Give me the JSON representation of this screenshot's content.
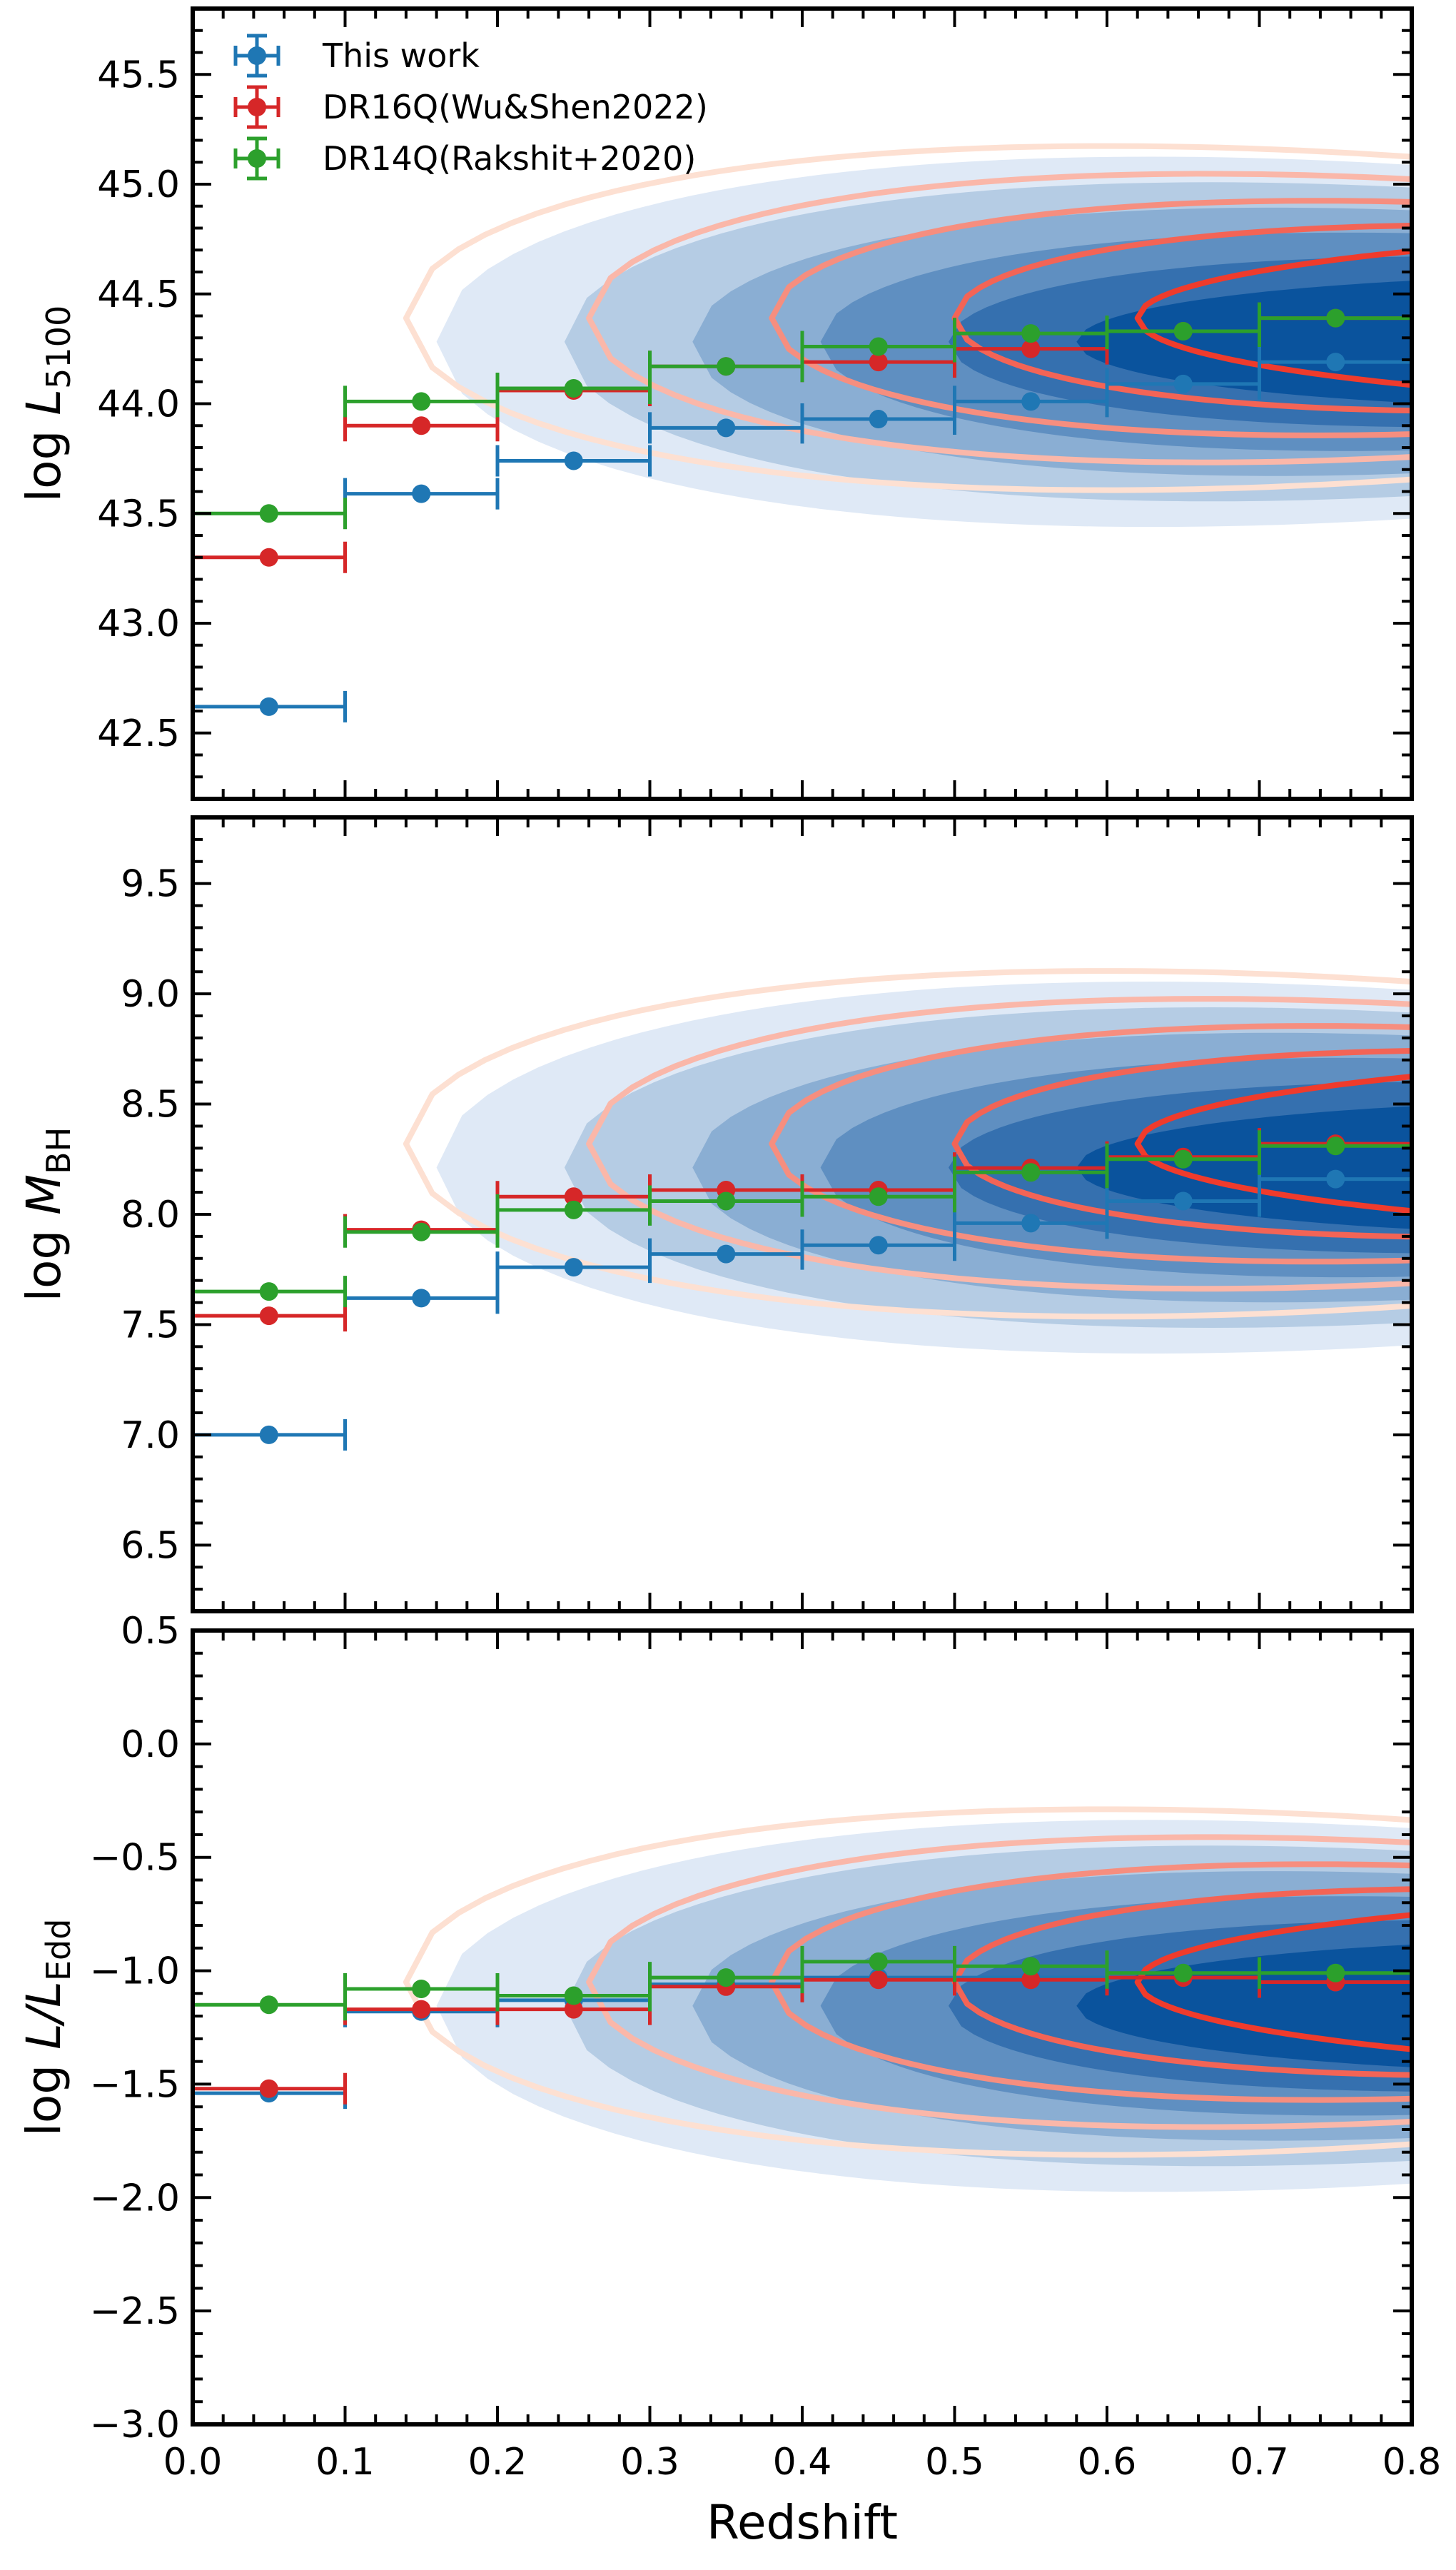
{
  "chart_data": {
    "type": "scatter",
    "title": "",
    "legend": {
      "position": "top-left",
      "entries": [
        {
          "name": "This work",
          "color": "#1f77b4"
        },
        {
          "name": "DR16Q(Wu&Shen2022)",
          "color": "#d62728"
        },
        {
          "name": "DR14Q(Rakshit+2020)",
          "color": "#2ca02c"
        }
      ]
    },
    "x": {
      "label": "Redshift",
      "range": [
        0.0,
        0.8
      ],
      "ticks": [
        0.0,
        0.1,
        0.2,
        0.3,
        0.4,
        0.5,
        0.6,
        0.7,
        0.8
      ],
      "tick_labels": [
        "0.0",
        "0.1",
        "0.2",
        "0.3",
        "0.4",
        "0.5",
        "0.6",
        "0.7",
        "0.8"
      ]
    },
    "bin_centers": [
      0.05,
      0.15,
      0.25,
      0.35,
      0.45,
      0.55,
      0.65,
      0.75
    ],
    "bin_halfwidth": 0.05,
    "background_density": {
      "fill": "#08519c",
      "contours": "#ef3b2c"
    },
    "panels": [
      {
        "id": "L5100",
        "ylabel_main": "log",
        "ylabel_sym": "L",
        "ylabel_sub": "5100",
        "ylim": [
          42.2,
          45.8
        ],
        "yticks": [
          42.5,
          43.0,
          43.5,
          44.0,
          44.5,
          45.0,
          45.5
        ],
        "ytick_labels": [
          "42.5",
          "43.0",
          "43.5",
          "44.0",
          "44.5",
          "45.0",
          "45.5"
        ],
        "series": [
          {
            "name": "This work",
            "color": "#1f77b4",
            "values": [
              42.62,
              43.59,
              43.74,
              43.89,
              43.93,
              44.01,
              44.09,
              44.19
            ]
          },
          {
            "name": "DR16Q(Wu&Shen2022)",
            "color": "#d62728",
            "values": [
              43.3,
              43.9,
              44.06,
              44.17,
              44.19,
              44.25,
              44.33,
              44.39
            ]
          },
          {
            "name": "DR14Q(Rakshit+2020)",
            "color": "#2ca02c",
            "values": [
              43.5,
              44.01,
              44.07,
              44.17,
              44.26,
              44.32,
              44.33,
              44.39
            ]
          }
        ]
      },
      {
        "id": "MBH",
        "ylabel_main": "log",
        "ylabel_sym": "M",
        "ylabel_sub": "BH",
        "ylim": [
          6.2,
          9.8
        ],
        "yticks": [
          6.5,
          7.0,
          7.5,
          8.0,
          8.5,
          9.0,
          9.5
        ],
        "ytick_labels": [
          "6.5",
          "7.0",
          "7.5",
          "8.0",
          "8.5",
          "9.0",
          "9.5"
        ],
        "series": [
          {
            "name": "This work",
            "color": "#1f77b4",
            "values": [
              7.0,
              7.62,
              7.76,
              7.82,
              7.86,
              7.96,
              8.06,
              8.16
            ]
          },
          {
            "name": "DR16Q(Wu&Shen2022)",
            "color": "#d62728",
            "values": [
              7.54,
              7.93,
              8.08,
              8.11,
              8.11,
              8.21,
              8.26,
              8.32
            ]
          },
          {
            "name": "DR14Q(Rakshit+2020)",
            "color": "#2ca02c",
            "values": [
              7.65,
              7.92,
              8.02,
              8.06,
              8.08,
              8.19,
              8.25,
              8.31
            ]
          }
        ]
      },
      {
        "id": "Edd",
        "ylabel_main": "log",
        "ylabel_sym": "L/L",
        "ylabel_sub": "Edd",
        "ylim": [
          -3.0,
          0.5
        ],
        "yticks": [
          -3.0,
          -2.5,
          -2.0,
          -1.5,
          -1.0,
          -0.5,
          0.0,
          0.5
        ],
        "ytick_labels": [
          "−3.0",
          "−2.5",
          "−2.0",
          "−1.5",
          "−1.0",
          "−0.5",
          "0.0",
          "0.5"
        ],
        "series": [
          {
            "name": "This work",
            "color": "#1f77b4",
            "values": [
              -1.54,
              -1.18,
              -1.13,
              -1.06,
              -1.03,
              -1.03,
              -1.03,
              -1.05
            ]
          },
          {
            "name": "DR16Q(Wu&Shen2022)",
            "color": "#d62728",
            "values": [
              -1.52,
              -1.17,
              -1.17,
              -1.07,
              -1.04,
              -1.04,
              -1.03,
              -1.05
            ]
          },
          {
            "name": "DR14Q(Rakshit+2020)",
            "color": "#2ca02c",
            "values": [
              -1.15,
              -1.08,
              -1.11,
              -1.03,
              -0.96,
              -0.98,
              -1.01,
              -1.01
            ]
          }
        ]
      }
    ]
  }
}
